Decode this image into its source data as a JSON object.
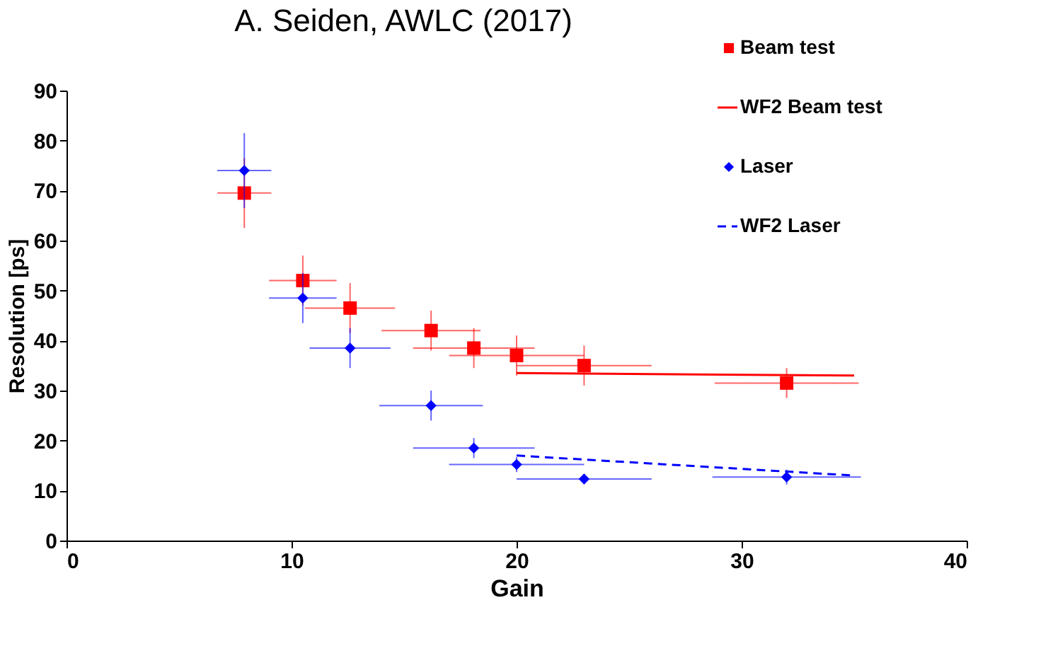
{
  "chart_data": {
    "type": "scatter",
    "title": "A. Seiden, AWLC (2017)",
    "xlabel": "Gain",
    "ylabel": "Resolution [ps]",
    "xlim": [
      0,
      40
    ],
    "xticks": [
      0,
      10,
      20,
      30,
      40
    ],
    "ylim": [
      0,
      90
    ],
    "yticks": [
      0,
      10,
      20,
      30,
      40,
      50,
      60,
      70,
      80,
      90
    ],
    "grid": false,
    "legend": "top right",
    "series": [
      {
        "name": "Beam test",
        "type": "scatter",
        "marker": "square",
        "color": "#ff0000",
        "x": [
          7.9,
          10.5,
          12.6,
          16.2,
          18.1,
          20,
          23,
          32
        ],
        "values": [
          69.5,
          52,
          46.5,
          42,
          38.5,
          37,
          35,
          31.5
        ],
        "errors": [
          7,
          5,
          5,
          4,
          4,
          4,
          4,
          3
        ],
        "xerrors": [
          1.2,
          1.5,
          2,
          2.2,
          2.7,
          3,
          3,
          3.2
        ]
      },
      {
        "name": "WF2 Beam test",
        "type": "line",
        "line_style": "solid",
        "color": "#ff0000",
        "x": [
          20,
          35
        ],
        "values": [
          33.5,
          33
        ]
      },
      {
        "name": "Laser",
        "type": "scatter",
        "marker": "diamond",
        "color": "#0000ff",
        "x": [
          7.9,
          10.5,
          12.6,
          16.2,
          18.1,
          20,
          23,
          32
        ],
        "values": [
          74,
          48.5,
          38.5,
          27,
          18.5,
          15.2,
          12.3,
          12.7
        ],
        "errors": [
          7.5,
          5,
          4,
          3,
          2,
          1.5,
          1,
          1.5
        ],
        "xerrors": [
          1.2,
          1.5,
          1.8,
          2.3,
          2.7,
          3,
          3,
          3.3
        ]
      },
      {
        "name": "WF2 Laser",
        "type": "line",
        "line_style": "dashed",
        "color": "#0000ff",
        "x": [
          20,
          35
        ],
        "values": [
          17,
          13
        ]
      }
    ]
  }
}
